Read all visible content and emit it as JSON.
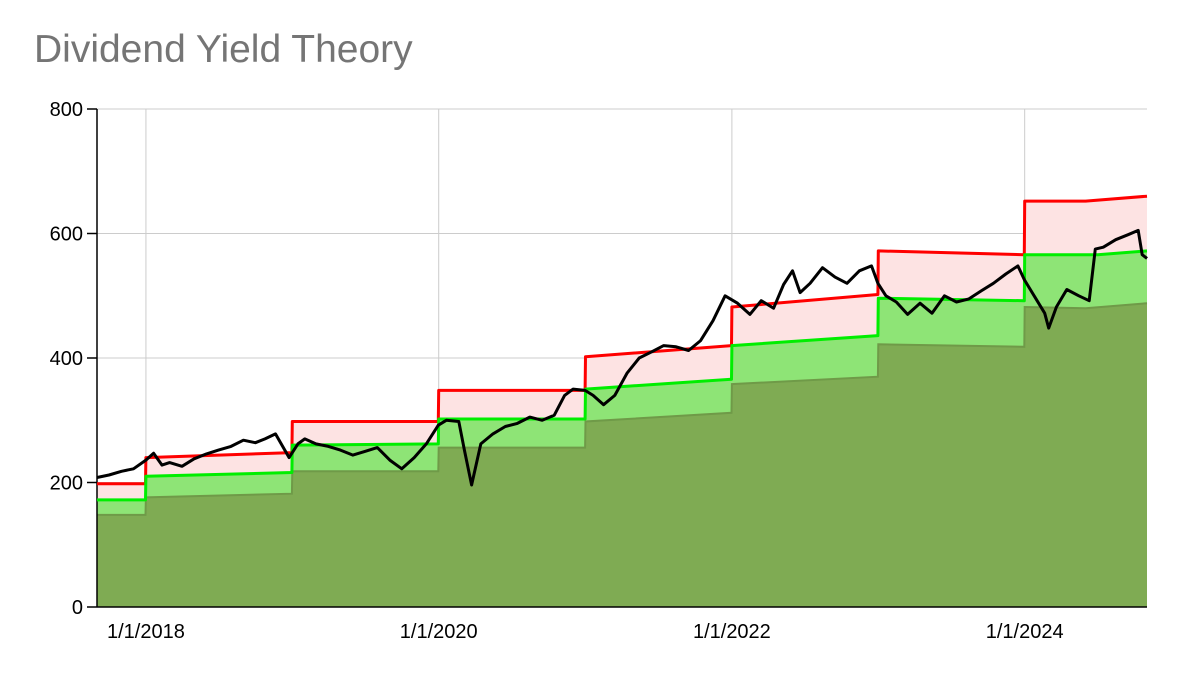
{
  "chart_data": {
    "type": "area",
    "title": "Dividend Yield Theory",
    "xlabel": "",
    "ylabel": "",
    "ylim": [
      0,
      800
    ],
    "yticks": [
      "0",
      "200",
      "400",
      "600",
      "800"
    ],
    "xlim": [
      "2017-09-01",
      "2024-11-01"
    ],
    "xticks": [
      {
        "date": "2018-01-01",
        "label": "1/1/2018"
      },
      {
        "date": "2020-01-01",
        "label": "1/1/2020"
      },
      {
        "date": "2022-01-01",
        "label": "1/1/2022"
      },
      {
        "date": "2024-01-01",
        "label": "1/1/2024"
      }
    ],
    "grid": true,
    "legend": "none",
    "colors": {
      "overvalued_fill": "#fde3e3",
      "fair_fill": "#8ee476",
      "undervalued_fill": "#7fab53",
      "overvalued_line": "#ff0000",
      "fair_line": "#00ee00",
      "price_line": "#000000",
      "grid": "#cccccc"
    },
    "series": [
      {
        "role": "overvalued",
        "points": [
          [
            "2017-09-01",
            198
          ],
          [
            "2017-12-31",
            198
          ],
          [
            "2018-01-01",
            240
          ],
          [
            "2018-12-31",
            248
          ],
          [
            "2019-01-01",
            298
          ],
          [
            "2019-12-31",
            298
          ],
          [
            "2020-01-01",
            348
          ],
          [
            "2020-12-31",
            348
          ],
          [
            "2021-01-01",
            402
          ],
          [
            "2021-12-31",
            420
          ],
          [
            "2022-01-01",
            482
          ],
          [
            "2022-12-31",
            502
          ],
          [
            "2023-01-01",
            572
          ],
          [
            "2023-12-31",
            566
          ],
          [
            "2024-01-01",
            652
          ],
          [
            "2024-06-01",
            652
          ],
          [
            "2024-11-01",
            660
          ]
        ]
      },
      {
        "role": "fair",
        "points": [
          [
            "2017-09-01",
            172
          ],
          [
            "2017-12-31",
            172
          ],
          [
            "2018-01-01",
            210
          ],
          [
            "2018-12-31",
            216
          ],
          [
            "2019-01-01",
            260
          ],
          [
            "2019-12-31",
            262
          ],
          [
            "2020-01-01",
            302
          ],
          [
            "2020-12-31",
            302
          ],
          [
            "2021-01-01",
            350
          ],
          [
            "2021-12-31",
            366
          ],
          [
            "2022-01-01",
            420
          ],
          [
            "2022-12-31",
            436
          ],
          [
            "2023-01-01",
            496
          ],
          [
            "2023-12-31",
            492
          ],
          [
            "2024-01-01",
            566
          ],
          [
            "2024-07-01",
            566
          ],
          [
            "2024-11-01",
            572
          ]
        ]
      },
      {
        "role": "undervalued",
        "points": [
          [
            "2017-09-01",
            148
          ],
          [
            "2017-12-31",
            148
          ],
          [
            "2018-01-01",
            176
          ],
          [
            "2018-12-31",
            182
          ],
          [
            "2019-01-01",
            218
          ],
          [
            "2019-12-31",
            218
          ],
          [
            "2020-01-01",
            256
          ],
          [
            "2020-12-31",
            256
          ],
          [
            "2021-01-01",
            298
          ],
          [
            "2021-12-31",
            312
          ],
          [
            "2022-01-01",
            358
          ],
          [
            "2022-12-31",
            370
          ],
          [
            "2023-01-01",
            422
          ],
          [
            "2023-12-31",
            418
          ],
          [
            "2024-01-01",
            482
          ],
          [
            "2024-06-01",
            480
          ],
          [
            "2024-11-01",
            488
          ]
        ]
      },
      {
        "role": "price",
        "points": [
          [
            "2017-09-01",
            208
          ],
          [
            "2017-10-01",
            212
          ],
          [
            "2017-11-01",
            218
          ],
          [
            "2017-12-01",
            222
          ],
          [
            "2018-01-01",
            236
          ],
          [
            "2018-01-20",
            247
          ],
          [
            "2018-02-10",
            228
          ],
          [
            "2018-03-01",
            232
          ],
          [
            "2018-04-01",
            226
          ],
          [
            "2018-05-01",
            238
          ],
          [
            "2018-06-01",
            246
          ],
          [
            "2018-07-01",
            252
          ],
          [
            "2018-08-01",
            258
          ],
          [
            "2018-09-01",
            268
          ],
          [
            "2018-10-01",
            264
          ],
          [
            "2018-10-25",
            270
          ],
          [
            "2018-11-20",
            278
          ],
          [
            "2018-12-24",
            240
          ],
          [
            "2019-01-15",
            262
          ],
          [
            "2019-02-01",
            270
          ],
          [
            "2019-03-01",
            262
          ],
          [
            "2019-04-01",
            258
          ],
          [
            "2019-05-01",
            252
          ],
          [
            "2019-06-01",
            244
          ],
          [
            "2019-07-01",
            250
          ],
          [
            "2019-08-01",
            256
          ],
          [
            "2019-09-01",
            236
          ],
          [
            "2019-10-01",
            222
          ],
          [
            "2019-11-01",
            240
          ],
          [
            "2019-12-01",
            262
          ],
          [
            "2019-12-31",
            292
          ],
          [
            "2020-01-20",
            300
          ],
          [
            "2020-02-20",
            298
          ],
          [
            "2020-03-05",
            252
          ],
          [
            "2020-03-23",
            196
          ],
          [
            "2020-04-15",
            262
          ],
          [
            "2020-05-15",
            278
          ],
          [
            "2020-06-15",
            290
          ],
          [
            "2020-07-15",
            295
          ],
          [
            "2020-08-15",
            305
          ],
          [
            "2020-09-15",
            300
          ],
          [
            "2020-10-15",
            308
          ],
          [
            "2020-11-10",
            340
          ],
          [
            "2020-12-01",
            350
          ],
          [
            "2020-12-31",
            348
          ],
          [
            "2021-01-20",
            340
          ],
          [
            "2021-02-15",
            325
          ],
          [
            "2021-03-15",
            340
          ],
          [
            "2021-04-15",
            376
          ],
          [
            "2021-05-15",
            400
          ],
          [
            "2021-06-15",
            410
          ],
          [
            "2021-07-15",
            420
          ],
          [
            "2021-08-15",
            418
          ],
          [
            "2021-09-15",
            412
          ],
          [
            "2021-10-15",
            428
          ],
          [
            "2021-11-15",
            460
          ],
          [
            "2021-12-15",
            500
          ],
          [
            "2022-01-15",
            488
          ],
          [
            "2022-02-15",
            470
          ],
          [
            "2022-03-15",
            492
          ],
          [
            "2022-04-15",
            480
          ],
          [
            "2022-05-10",
            518
          ],
          [
            "2022-06-01",
            540
          ],
          [
            "2022-06-20",
            505
          ],
          [
            "2022-07-15",
            520
          ],
          [
            "2022-08-15",
            545
          ],
          [
            "2022-09-15",
            530
          ],
          [
            "2022-10-15",
            520
          ],
          [
            "2022-11-15",
            540
          ],
          [
            "2022-12-15",
            548
          ],
          [
            "2022-12-31",
            520
          ],
          [
            "2023-01-20",
            500
          ],
          [
            "2023-02-15",
            490
          ],
          [
            "2023-03-15",
            470
          ],
          [
            "2023-04-15",
            488
          ],
          [
            "2023-05-15",
            472
          ],
          [
            "2023-06-15",
            500
          ],
          [
            "2023-07-15",
            490
          ],
          [
            "2023-08-15",
            495
          ],
          [
            "2023-09-15",
            508
          ],
          [
            "2023-10-15",
            520
          ],
          [
            "2023-11-15",
            535
          ],
          [
            "2023-12-15",
            548
          ],
          [
            "2023-12-31",
            526
          ],
          [
            "2024-01-15",
            510
          ],
          [
            "2024-02-01",
            492
          ],
          [
            "2024-02-20",
            472
          ],
          [
            "2024-03-01",
            448
          ],
          [
            "2024-03-20",
            482
          ],
          [
            "2024-04-15",
            510
          ],
          [
            "2024-05-15",
            500
          ],
          [
            "2024-06-10",
            492
          ],
          [
            "2024-06-25",
            575
          ],
          [
            "2024-07-15",
            578
          ],
          [
            "2024-08-15",
            590
          ],
          [
            "2024-09-15",
            598
          ],
          [
            "2024-10-10",
            605
          ],
          [
            "2024-10-20",
            566
          ],
          [
            "2024-11-01",
            560
          ]
        ]
      }
    ]
  }
}
